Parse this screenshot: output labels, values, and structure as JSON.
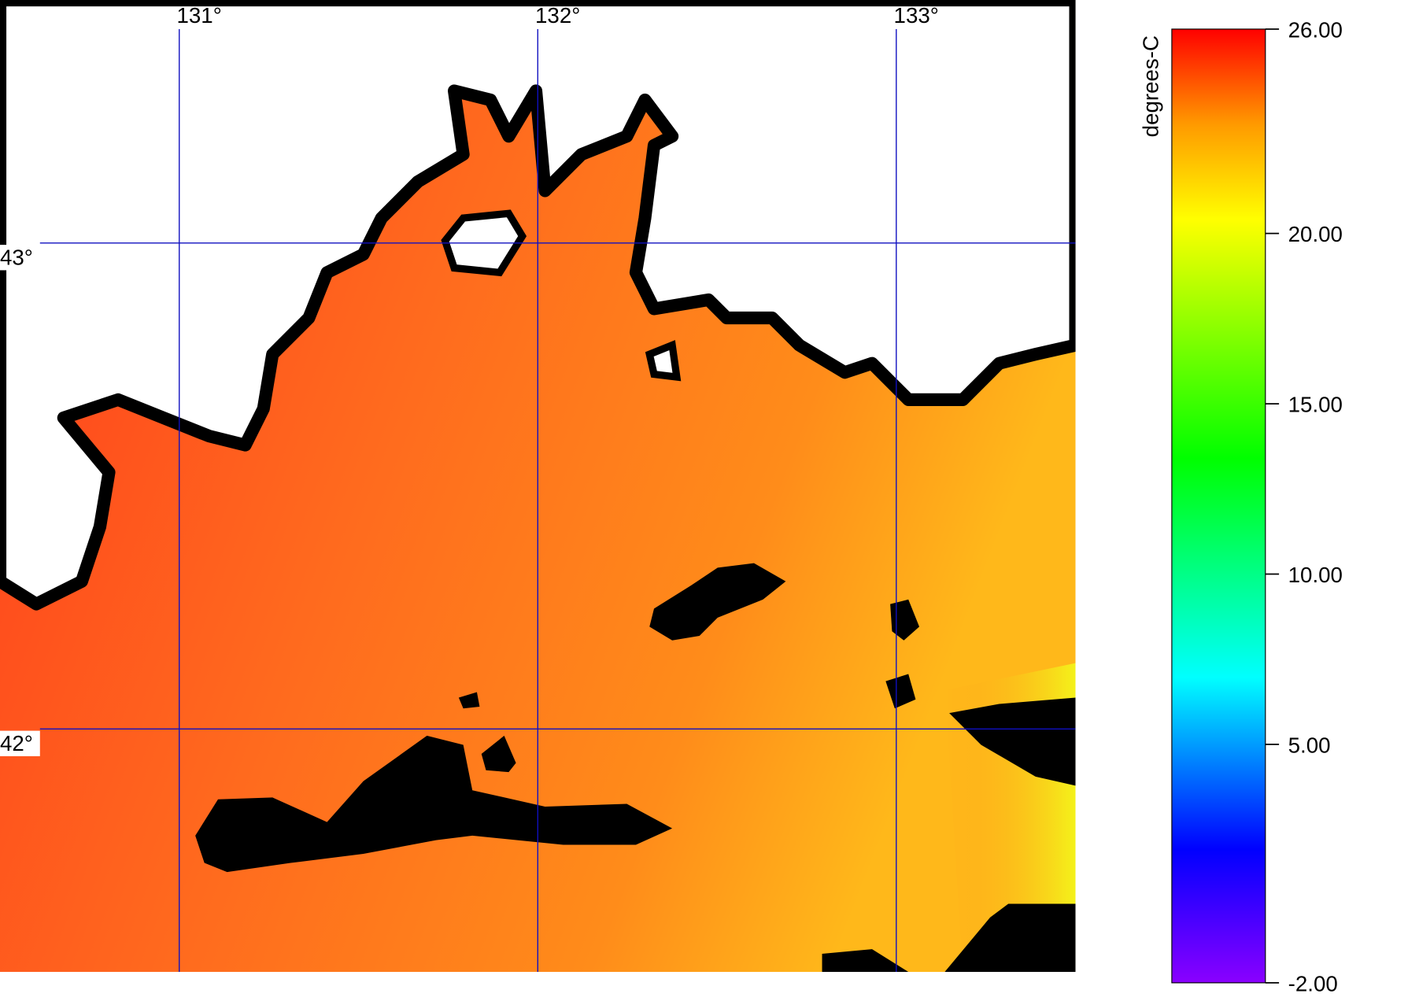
{
  "map": {
    "lon_range": [
      130.5,
      133.5
    ],
    "lat_range": [
      41.5,
      43.5
    ],
    "lon_lines": [
      {
        "value": 131,
        "label": "131°"
      },
      {
        "value": 132,
        "label": "132°"
      },
      {
        "value": 133,
        "label": "133°"
      }
    ],
    "lat_lines": [
      {
        "value": 43,
        "label": "43°"
      },
      {
        "value": 42,
        "label": "42°"
      }
    ]
  },
  "colorbar": {
    "label": "degrees-C",
    "range": [
      -2,
      26
    ],
    "ticks": [
      {
        "value": 26,
        "label": "26.00"
      },
      {
        "value": 20,
        "label": "20.00"
      },
      {
        "value": 15,
        "label": "15.00"
      },
      {
        "value": 10,
        "label": "10.00"
      },
      {
        "value": 5,
        "label": "5.00"
      },
      {
        "value": -2,
        "label": "-2.00"
      }
    ]
  }
}
